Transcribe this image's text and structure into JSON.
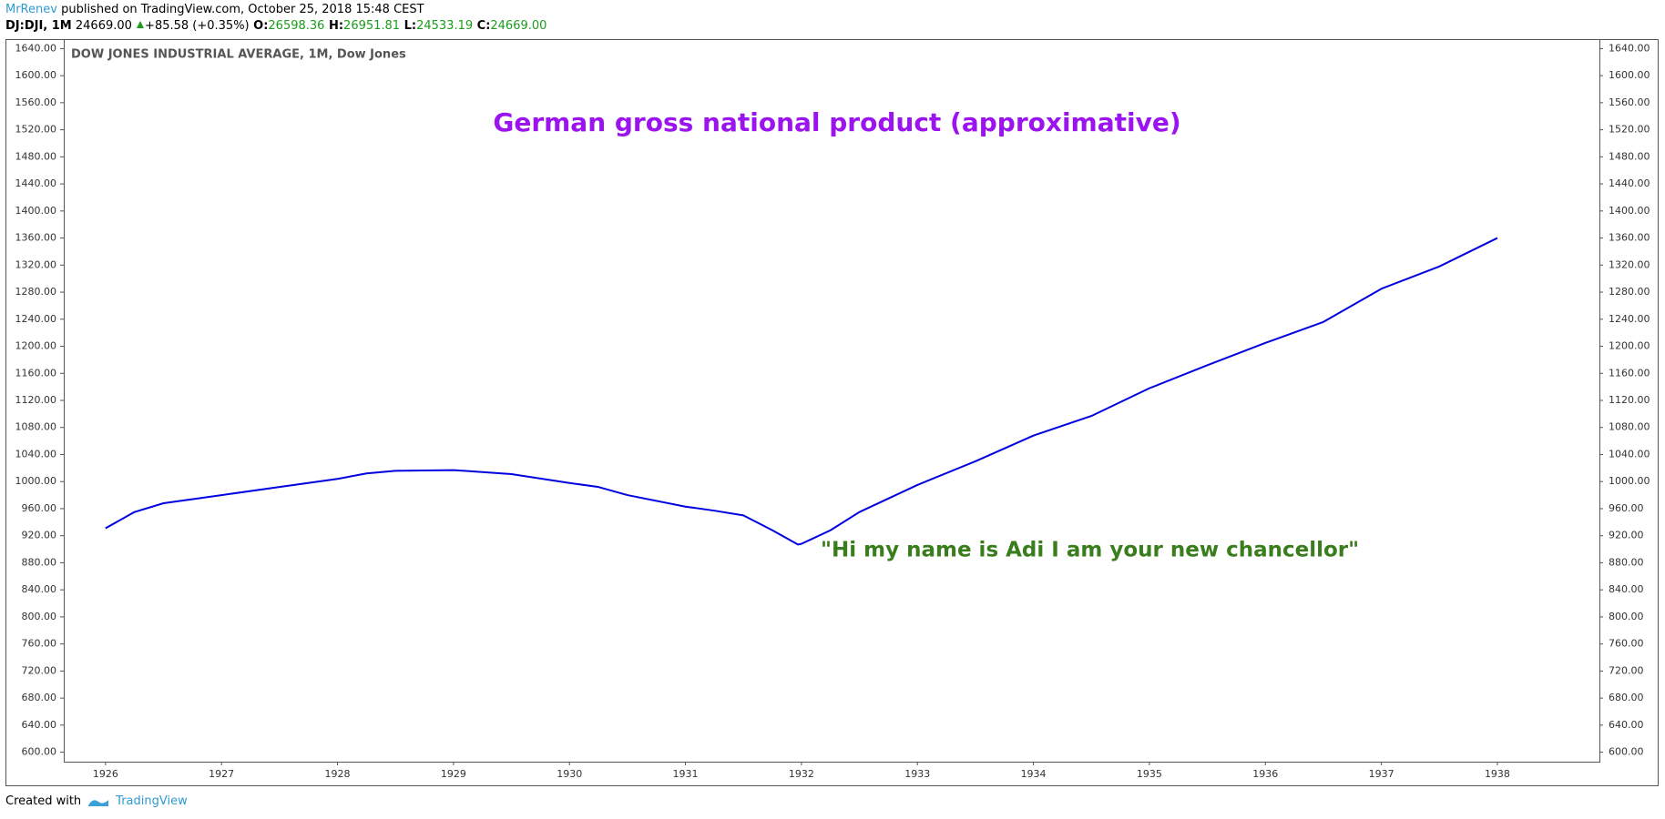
{
  "header": {
    "author": "MrRenev",
    "published": " published on TradingView.com, October 25, 2018 15:48 CEST",
    "symbol": "DJ:DJI, 1M",
    "price": " 24669.00 ",
    "change": "+85.58 (+0.35%)",
    "open_label": " O:",
    "open": "26598.36",
    "high_label": " H:",
    "high": "26951.81",
    "low_label": " L:",
    "low": "24533.19",
    "close_label": " C:",
    "close": "24669.00"
  },
  "chart_data": {
    "type": "line",
    "title": "DOW JONES INDUSTRIAL AVERAGE, 1M, Dow Jones",
    "annotations": [
      "German gross national product (approximative)",
      "\"Hi my name is Adi I am your new chancellor\""
    ],
    "color": "#0000e0",
    "x": [
      1926.0,
      1926.25,
      1926.5,
      1927.0,
      1927.5,
      1928.0,
      1928.25,
      1928.5,
      1929.0,
      1929.5,
      1930.0,
      1930.25,
      1930.5,
      1931.0,
      1931.25,
      1931.5,
      1931.75,
      1931.97,
      1932.0,
      1932.25,
      1932.5,
      1932.75,
      1933.0,
      1933.5,
      1934.0,
      1934.5,
      1935.0,
      1935.5,
      1936.0,
      1936.5,
      1937.0,
      1937.5,
      1938.0
    ],
    "values": [
      931,
      955,
      968,
      980,
      992,
      1004,
      1012,
      1016,
      1017,
      1011,
      998,
      992,
      980,
      963,
      957,
      950,
      928,
      907,
      908,
      928,
      955,
      975,
      995,
      1030,
      1068,
      1097,
      1138,
      1172,
      1205,
      1236,
      1285,
      1318,
      1360
    ],
    "xlim": [
      1925.64,
      1938.88
    ],
    "xticks": [
      1926,
      1927,
      1928,
      1929,
      1930,
      1931,
      1932,
      1933,
      1934,
      1935,
      1936,
      1937,
      1938
    ],
    "ylim": [
      586,
      1654
    ],
    "yticks": [
      {
        "value": 600,
        "label": "600.00"
      },
      {
        "value": 640,
        "label": "640.00"
      },
      {
        "value": 680,
        "label": "680.00"
      },
      {
        "value": 720,
        "label": "720.00"
      },
      {
        "value": 760,
        "label": "760.00"
      },
      {
        "value": 800,
        "label": "800.00"
      },
      {
        "value": 840,
        "label": "840.00"
      },
      {
        "value": 880,
        "label": "880.00"
      },
      {
        "value": 920,
        "label": "920.00"
      },
      {
        "value": 960,
        "label": "960.00"
      },
      {
        "value": 1000,
        "label": "1000.00"
      },
      {
        "value": 1040,
        "label": "1040.00"
      },
      {
        "value": 1080,
        "label": "1080.00"
      },
      {
        "value": 1120,
        "label": "1120.00"
      },
      {
        "value": 1160,
        "label": "1160.00"
      },
      {
        "value": 1200,
        "label": "1200.00"
      },
      {
        "value": 1240,
        "label": "1240.00"
      },
      {
        "value": 1280,
        "label": "1280.00"
      },
      {
        "value": 1320,
        "label": "1320.00"
      },
      {
        "value": 1360,
        "label": "1360.00"
      },
      {
        "value": 1400,
        "label": "1400.00"
      },
      {
        "value": 1440,
        "label": "1440.00"
      },
      {
        "value": 1480,
        "label": "1480.00"
      },
      {
        "value": 1520,
        "label": "1520.00"
      },
      {
        "value": 1560,
        "label": "1560.00"
      },
      {
        "value": 1600,
        "label": "1600.00"
      },
      {
        "value": 1640,
        "label": "1640.00"
      }
    ],
    "grid": false
  },
  "footer": {
    "created": "Created with",
    "brand": "TradingView"
  }
}
